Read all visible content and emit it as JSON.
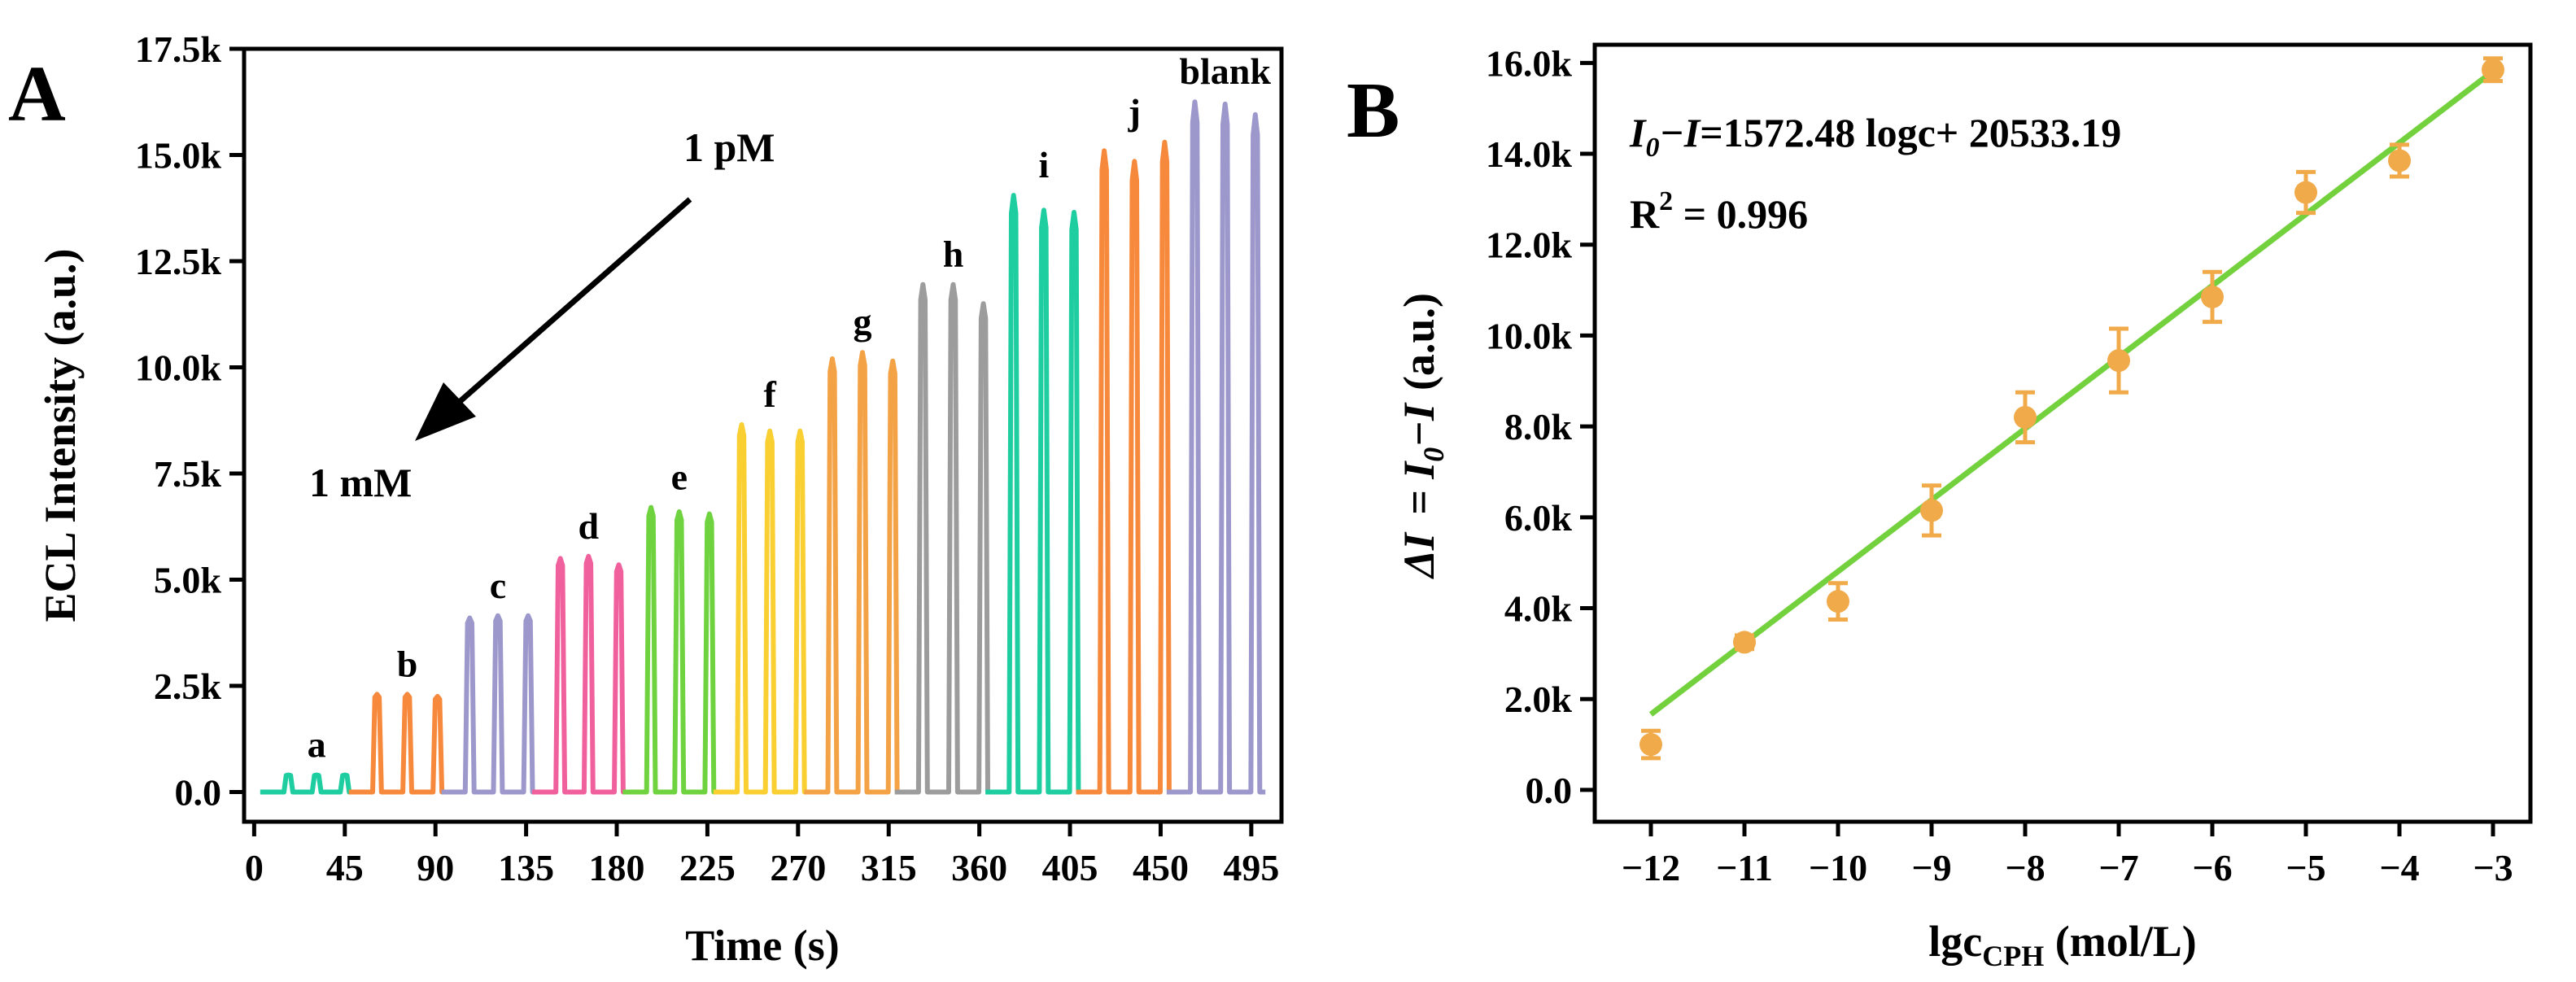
{
  "chart_data": [
    {
      "panel": "A",
      "type": "line",
      "xlabel": "Time (s)",
      "ylabel": "ECL Intensity (a.u.)",
      "xlim": [
        -5,
        510
      ],
      "ylim": [
        -700,
        17500
      ],
      "xticks": [
        0,
        45,
        90,
        135,
        180,
        225,
        270,
        315,
        360,
        405,
        450,
        495
      ],
      "yticks": [
        0,
        2500,
        5000,
        7500,
        10000,
        12500,
        15000,
        17500
      ],
      "ytick_labels": [
        "0.0",
        "2.5k",
        "5.0k",
        "7.5k",
        "10.0k",
        "12.5k",
        "15.0k",
        "17.5k"
      ],
      "annotations": {
        "start": "1 pM",
        "end": "1 mM"
      },
      "series": [
        {
          "name": "a",
          "color": "#1ecda0",
          "peaks": [
            {
              "t": 17,
              "v": 400
            },
            {
              "t": 31,
              "v": 400
            },
            {
              "t": 45,
              "v": 400
            }
          ]
        },
        {
          "name": "b",
          "color": "#f6893b",
          "peaks": [
            {
              "t": 61,
              "v": 2300
            },
            {
              "t": 76,
              "v": 2300
            },
            {
              "t": 91,
              "v": 2250
            }
          ]
        },
        {
          "name": "c",
          "color": "#9c98cb",
          "peaks": [
            {
              "t": 107,
              "v": 4100
            },
            {
              "t": 121,
              "v": 4150
            },
            {
              "t": 136,
              "v": 4150
            }
          ]
        },
        {
          "name": "d",
          "color": "#f0609c",
          "peaks": [
            {
              "t": 152,
              "v": 5500
            },
            {
              "t": 166,
              "v": 5550
            },
            {
              "t": 181,
              "v": 5350
            }
          ]
        },
        {
          "name": "e",
          "color": "#6fd33f",
          "peaks": [
            {
              "t": 197,
              "v": 6700
            },
            {
              "t": 211,
              "v": 6600
            },
            {
              "t": 226,
              "v": 6550
            }
          ]
        },
        {
          "name": "f",
          "color": "#f9cf32",
          "peaks": [
            {
              "t": 242,
              "v": 8650
            },
            {
              "t": 256,
              "v": 8500
            },
            {
              "t": 271,
              "v": 8500
            }
          ]
        },
        {
          "name": "g",
          "color": "#f3a246",
          "peaks": [
            {
              "t": 287,
              "v": 10200
            },
            {
              "t": 302,
              "v": 10350
            },
            {
              "t": 317,
              "v": 10150
            }
          ]
        },
        {
          "name": "h",
          "color": "#9c9c9c",
          "peaks": [
            {
              "t": 332,
              "v": 11950
            },
            {
              "t": 347,
              "v": 11950
            },
            {
              "t": 362,
              "v": 11500
            }
          ]
        },
        {
          "name": "i",
          "color": "#1ecda0",
          "peaks": [
            {
              "t": 377,
              "v": 14050
            },
            {
              "t": 392,
              "v": 13700
            },
            {
              "t": 407,
              "v": 13650
            }
          ]
        },
        {
          "name": "j",
          "color": "#f6893b",
          "peaks": [
            {
              "t": 422,
              "v": 15100
            },
            {
              "t": 437,
              "v": 14850
            },
            {
              "t": 452,
              "v": 15300
            }
          ]
        },
        {
          "name": "blank",
          "color": "#9c98cb",
          "peaks": [
            {
              "t": 467,
              "v": 16250
            },
            {
              "t": 482,
              "v": 16200
            },
            {
              "t": 497,
              "v": 15950
            }
          ]
        }
      ]
    },
    {
      "panel": "B",
      "type": "scatter",
      "xlabel_main": "lgc",
      "xlabel_sub": "CPH",
      "xlabel_unit": " (mol/L)",
      "ylabel_parts": [
        "ΔI",
        "= I",
        "0",
        "−I",
        "(a.u.)"
      ],
      "xlim": [
        -12.6,
        -2.6
      ],
      "ylim": [
        -700,
        16400
      ],
      "xticks": [
        -12,
        -11,
        -10,
        -9,
        -8,
        -7,
        -6,
        -5,
        -4,
        -3
      ],
      "xtick_labels": [
        "−12",
        "−11",
        "−10",
        "−9",
        "−8",
        "−7",
        "−6",
        "−5",
        "−4",
        "−3"
      ],
      "yticks": [
        0,
        2000,
        4000,
        6000,
        8000,
        10000,
        12000,
        14000,
        16000
      ],
      "ytick_labels": [
        "0.0",
        "2.0k",
        "4.0k",
        "6.0k",
        "8.0k",
        "10.0k",
        "12.0k",
        "14.0k",
        "16.0k"
      ],
      "equation": {
        "lhs_a": "I",
        "lhs_sub": "0",
        "lhs_b": "−I",
        "rhs": "=1572.48 logc+ 20533.19"
      },
      "r2": {
        "lhs": "R",
        "sup": "2",
        "rhs": " = 0.996"
      },
      "fit": {
        "slope": 1572.48,
        "intercept": 20533.19,
        "x_range": [
          -12,
          -3
        ],
        "color": "#73d13d"
      },
      "marker_color": "#f0aa4a",
      "points": [
        {
          "x": -12,
          "y": 1000,
          "err": 300
        },
        {
          "x": -11,
          "y": 3250,
          "err": 150
        },
        {
          "x": -10,
          "y": 4150,
          "err": 400
        },
        {
          "x": -9,
          "y": 6150,
          "err": 550
        },
        {
          "x": -8,
          "y": 8200,
          "err": 550
        },
        {
          "x": -7,
          "y": 9450,
          "err": 700
        },
        {
          "x": -6,
          "y": 10850,
          "err": 550
        },
        {
          "x": -5,
          "y": 13150,
          "err": 450
        },
        {
          "x": -4,
          "y": 13850,
          "err": 350
        },
        {
          "x": -3,
          "y": 15850,
          "err": 250
        }
      ]
    }
  ],
  "panels": {
    "a": "A",
    "b": "B"
  }
}
